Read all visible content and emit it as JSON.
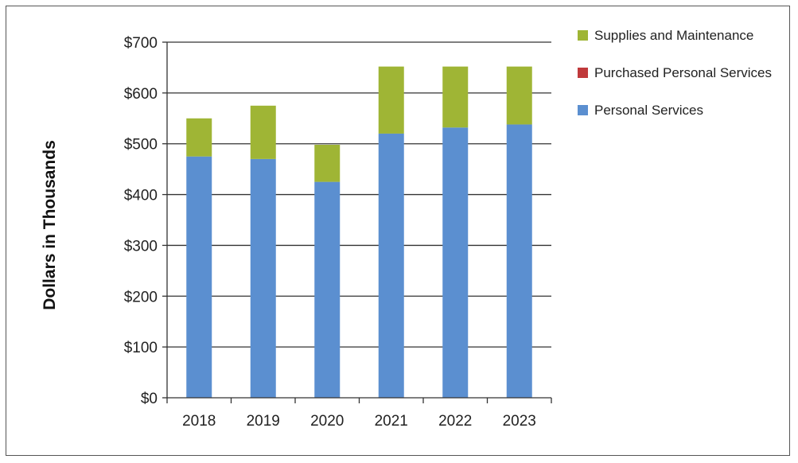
{
  "chart_data": {
    "type": "bar",
    "stacked": true,
    "categories": [
      "2018",
      "2019",
      "2020",
      "2021",
      "2022",
      "2023"
    ],
    "series": [
      {
        "name": "Personal Services",
        "color": "#5b8fd0",
        "values": [
          475,
          470,
          425,
          520,
          532,
          538
        ]
      },
      {
        "name": "Purchased Personal Services",
        "color": "#c0393b",
        "values": [
          0,
          0,
          0,
          0,
          0,
          0
        ]
      },
      {
        "name": "Supplies and Maintenance",
        "color": "#9fb535",
        "values": [
          75,
          105,
          73,
          132,
          120,
          114
        ]
      }
    ],
    "legend_order": [
      "Supplies and Maintenance",
      "Purchased Personal Services",
      "Personal Services"
    ],
    "legend_position": "top-right",
    "title": "",
    "xlabel": "",
    "ylabel": "Dollars in Thousands",
    "ylim": [
      0,
      700
    ],
    "yticks": [
      0,
      100,
      200,
      300,
      400,
      500,
      600,
      700
    ],
    "ytick_labels": [
      "$0",
      "$100",
      "$200",
      "$300",
      "$400",
      "$500",
      "$600",
      "$700"
    ],
    "grid": true
  }
}
